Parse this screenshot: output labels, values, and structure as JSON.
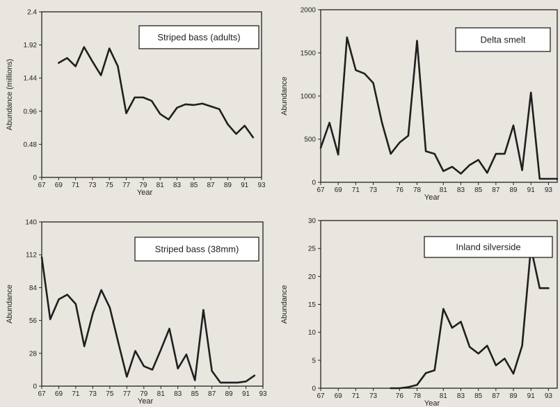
{
  "chart_data": [
    {
      "type": "line",
      "title": "",
      "legend": "Striped bass (adults)",
      "legend_position": "top-right",
      "xlabel": "Year",
      "ylabel": "Abundance (millions)",
      "xlim": [
        67,
        93
      ],
      "ylim": [
        0,
        2.4
      ],
      "yticks": [
        0,
        0.48,
        0.96,
        1.44,
        1.92,
        2.4
      ],
      "ytick_labels": [
        "0",
        "0.48",
        "0.96",
        "1.44",
        "1.92",
        "2.4"
      ],
      "xticks": [
        67,
        69,
        71,
        73,
        75,
        77,
        79,
        81,
        83,
        85,
        87,
        89,
        91,
        93
      ],
      "xtick_labels": [
        "67",
        "69",
        "71",
        "73",
        "75",
        "77",
        "79",
        "81",
        "83",
        "85",
        "87",
        "89",
        "91",
        "93"
      ],
      "grid": false,
      "x": [
        69,
        70,
        71,
        72,
        73,
        74,
        75,
        76,
        77,
        78,
        79,
        80,
        81,
        82,
        83,
        84,
        85,
        86,
        87,
        88,
        89,
        90,
        91,
        92
      ],
      "y": [
        1.66,
        1.73,
        1.61,
        1.89,
        1.68,
        1.48,
        1.87,
        1.61,
        0.93,
        1.16,
        1.16,
        1.11,
        0.92,
        0.84,
        1.01,
        1.06,
        1.05,
        1.07,
        1.03,
        0.99,
        0.77,
        0.63,
        0.75,
        0.58
      ]
    },
    {
      "type": "line",
      "title": "",
      "legend": "Delta smelt",
      "legend_position": "top-right",
      "xlabel": "Year",
      "ylabel": "Abundance",
      "xlim": [
        67,
        94
      ],
      "ylim": [
        0,
        2000
      ],
      "yticks": [
        0,
        500,
        1000,
        1500,
        2000
      ],
      "ytick_labels": [
        "0",
        "500",
        "1000",
        "1500",
        "2000"
      ],
      "xticks": [
        67,
        69,
        71,
        73,
        76,
        78,
        81,
        83,
        85,
        87,
        89,
        91,
        93
      ],
      "xtick_labels": [
        "67",
        "69",
        "71",
        "73",
        "76",
        "78",
        "81",
        "83",
        "85",
        "87",
        "89",
        "91",
        "93"
      ],
      "grid": false,
      "x": [
        67,
        68,
        69,
        70,
        71,
        72,
        73,
        74,
        75,
        76,
        77,
        78,
        79,
        80,
        81,
        82,
        83,
        84,
        85,
        86,
        87,
        88,
        89,
        90,
        91,
        92,
        93,
        94
      ],
      "y": [
        400,
        690,
        320,
        1680,
        1300,
        1260,
        1150,
        690,
        330,
        460,
        540,
        1640,
        360,
        330,
        130,
        180,
        100,
        200,
        260,
        110,
        330,
        330,
        660,
        140,
        1040,
        40,
        40,
        40
      ]
    },
    {
      "type": "line",
      "title": "",
      "legend": "Striped bass (38mm)",
      "legend_position": "top-right",
      "xlabel": "Year",
      "ylabel": "Abundance",
      "xlim": [
        67,
        93
      ],
      "ylim": [
        0,
        140
      ],
      "yticks": [
        0,
        28,
        56,
        84,
        112,
        140
      ],
      "ytick_labels": [
        "0",
        "28",
        "56",
        "84",
        "112",
        "140"
      ],
      "xticks": [
        67,
        69,
        71,
        73,
        75,
        77,
        79,
        81,
        83,
        85,
        87,
        89,
        91,
        93
      ],
      "xtick_labels": [
        "67",
        "69",
        "71",
        "73",
        "75",
        "77",
        "79",
        "81",
        "83",
        "85",
        "87",
        "89",
        "91",
        "93"
      ],
      "grid": false,
      "x": [
        67,
        68,
        69,
        70,
        71,
        72,
        73,
        74,
        75,
        76,
        77,
        78,
        79,
        80,
        81,
        82,
        83,
        84,
        85,
        86,
        87,
        88,
        89,
        90,
        91,
        92
      ],
      "y": [
        110,
        57,
        74,
        78,
        70,
        34,
        62,
        82,
        67,
        37,
        8,
        30,
        17,
        14,
        31,
        49,
        15,
        27,
        5,
        65,
        13,
        3,
        3,
        3,
        4,
        9
      ]
    },
    {
      "type": "line",
      "title": "",
      "legend": "Inland silverside",
      "legend_position": "top-right",
      "xlabel": "Year",
      "ylabel": "Abundance",
      "xlim": [
        67,
        94
      ],
      "ylim": [
        0,
        30
      ],
      "yticks": [
        0,
        5,
        10,
        15,
        20,
        25,
        30
      ],
      "ytick_labels": [
        "0",
        "5",
        "10",
        "15",
        "20",
        "25",
        "30"
      ],
      "xticks": [
        67,
        69,
        71,
        73,
        76,
        78,
        81,
        83,
        85,
        87,
        89,
        91,
        93
      ],
      "xtick_labels": [
        "67",
        "69",
        "71",
        "73",
        "76",
        "78",
        "81",
        "83",
        "85",
        "87",
        "89",
        "91",
        "93"
      ],
      "grid": false,
      "x": [
        75,
        76,
        77,
        78,
        79,
        80,
        81,
        82,
        83,
        84,
        85,
        86,
        87,
        88,
        89,
        90,
        91,
        92,
        93
      ],
      "y": [
        0,
        0,
        0.2,
        0.6,
        2.7,
        3.2,
        14.2,
        10.8,
        11.9,
        7.4,
        6.2,
        7.6,
        4.1,
        5.3,
        2.6,
        7.6,
        25.2,
        17.9,
        17.9
      ]
    }
  ]
}
